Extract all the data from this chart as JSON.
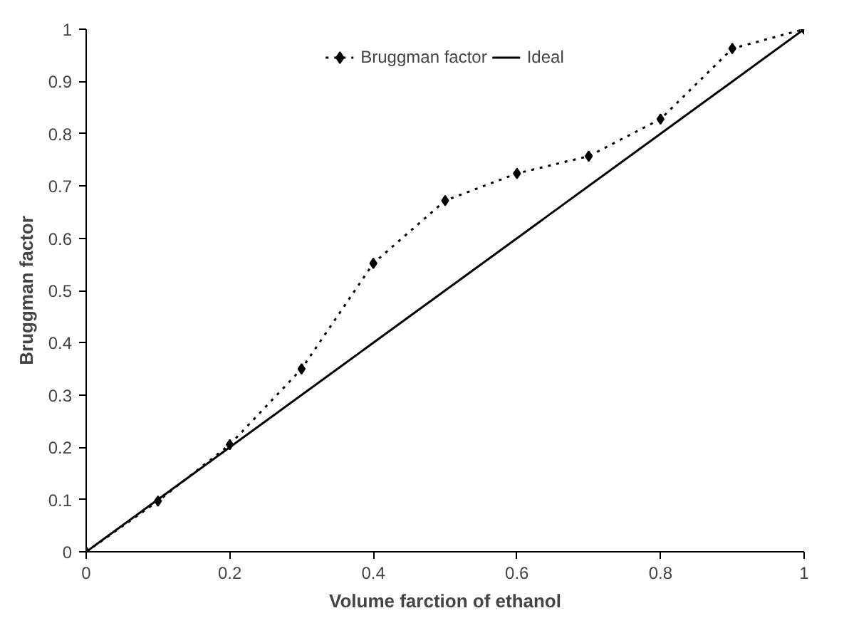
{
  "chart_data": {
    "type": "line",
    "xlabel": "Volume farction of ethanol",
    "ylabel": "Bruggman factor",
    "x": [
      0,
      0.1,
      0.2,
      0.3,
      0.4,
      0.5,
      0.6,
      0.7,
      0.8,
      0.9,
      1
    ],
    "series": [
      {
        "name": "Bruggman factor",
        "color": "#000000",
        "marker": "diamond",
        "line_style": "dotted",
        "values": [
          0,
          0.097,
          0.205,
          0.35,
          0.552,
          0.672,
          0.724,
          0.757,
          0.828,
          0.963,
          1
        ]
      },
      {
        "name": "Ideal",
        "color": "#000000",
        "marker": "none",
        "line_style": "solid",
        "x": [
          0,
          1
        ],
        "values": [
          0,
          1
        ]
      }
    ],
    "xlim": [
      0,
      1
    ],
    "ylim": [
      0,
      1
    ],
    "xticks": [
      0,
      0.2,
      0.4,
      0.6,
      0.8,
      1
    ],
    "yticks": [
      0,
      0.1,
      0.2,
      0.3,
      0.4,
      0.5,
      0.6,
      0.7,
      0.8,
      0.9,
      1
    ],
    "grid": false,
    "legend": "top"
  }
}
